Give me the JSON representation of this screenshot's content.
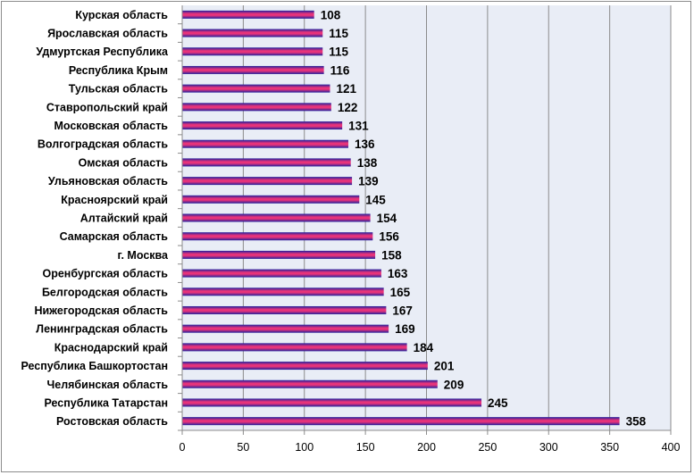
{
  "chart_data": {
    "type": "bar",
    "orientation": "horizontal",
    "categories": [
      "Курская область",
      "Ярославская область",
      "Удмуртская Республика",
      "Республика Крым",
      "Тульская область",
      "Ставропольский край",
      "Московская область",
      "Волгоградская область",
      "Омская область",
      "Ульяновская область",
      "Красноярский край",
      "Алтайский край",
      "Самарская область",
      "г. Москва",
      "Оренбургская область",
      "Белгородская область",
      "Нижегородская область",
      "Ленинградская область",
      "Краснодарский край",
      "Республика Башкортостан",
      "Челябинская область",
      "Республика Татарстан",
      "Ростовская область"
    ],
    "values": [
      108,
      115,
      115,
      116,
      121,
      122,
      131,
      136,
      138,
      139,
      145,
      154,
      156,
      158,
      163,
      165,
      167,
      169,
      184,
      201,
      209,
      245,
      358
    ],
    "data_labels": [
      "108",
      "115",
      "115",
      "116",
      "121",
      "122",
      "131",
      "136",
      "138",
      "139",
      "145",
      "154",
      "156",
      "158",
      "163",
      "165",
      "167",
      "169",
      "184",
      "201",
      "209",
      "245",
      "358"
    ],
    "xlim": [
      0,
      400
    ],
    "xticks": [
      "0",
      "50",
      "100",
      "150",
      "200",
      "250",
      "300",
      "350",
      "400"
    ],
    "grid": "vertical",
    "legend": "none",
    "colors": {
      "bar_top": "#1f1f9e",
      "bar_middle": "#e8337a",
      "bar_bottom": "#1f1f9e",
      "plot_background": "#e9edf6",
      "gridline": "#8c8c8c"
    }
  }
}
